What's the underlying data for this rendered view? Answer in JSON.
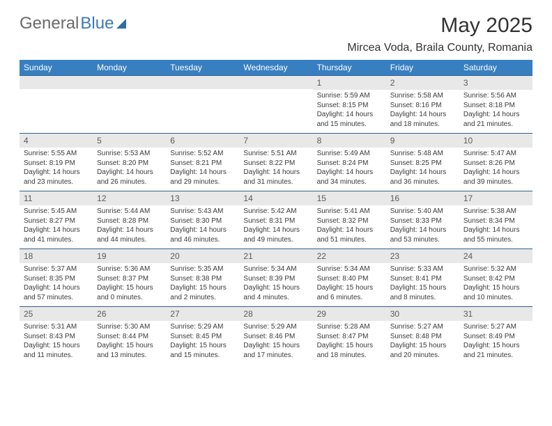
{
  "brand": {
    "part1": "General",
    "part2": "Blue"
  },
  "title": "May 2025",
  "location": "Mircea Voda, Braila County, Romania",
  "colors": {
    "header_bg": "#377fc0",
    "header_text": "#ffffff",
    "daynum_bg": "#e8e8e8",
    "border": "#2f5f8c",
    "body_text": "#333333"
  },
  "days_of_week": [
    "Sunday",
    "Monday",
    "Tuesday",
    "Wednesday",
    "Thursday",
    "Friday",
    "Saturday"
  ],
  "weeks": [
    [
      {
        "n": "",
        "lines": []
      },
      {
        "n": "",
        "lines": []
      },
      {
        "n": "",
        "lines": []
      },
      {
        "n": "",
        "lines": []
      },
      {
        "n": "1",
        "lines": [
          "Sunrise: 5:59 AM",
          "Sunset: 8:15 PM",
          "Daylight: 14 hours",
          "and 15 minutes."
        ]
      },
      {
        "n": "2",
        "lines": [
          "Sunrise: 5:58 AM",
          "Sunset: 8:16 PM",
          "Daylight: 14 hours",
          "and 18 minutes."
        ]
      },
      {
        "n": "3",
        "lines": [
          "Sunrise: 5:56 AM",
          "Sunset: 8:18 PM",
          "Daylight: 14 hours",
          "and 21 minutes."
        ]
      }
    ],
    [
      {
        "n": "4",
        "lines": [
          "Sunrise: 5:55 AM",
          "Sunset: 8:19 PM",
          "Daylight: 14 hours",
          "and 23 minutes."
        ]
      },
      {
        "n": "5",
        "lines": [
          "Sunrise: 5:53 AM",
          "Sunset: 8:20 PM",
          "Daylight: 14 hours",
          "and 26 minutes."
        ]
      },
      {
        "n": "6",
        "lines": [
          "Sunrise: 5:52 AM",
          "Sunset: 8:21 PM",
          "Daylight: 14 hours",
          "and 29 minutes."
        ]
      },
      {
        "n": "7",
        "lines": [
          "Sunrise: 5:51 AM",
          "Sunset: 8:22 PM",
          "Daylight: 14 hours",
          "and 31 minutes."
        ]
      },
      {
        "n": "8",
        "lines": [
          "Sunrise: 5:49 AM",
          "Sunset: 8:24 PM",
          "Daylight: 14 hours",
          "and 34 minutes."
        ]
      },
      {
        "n": "9",
        "lines": [
          "Sunrise: 5:48 AM",
          "Sunset: 8:25 PM",
          "Daylight: 14 hours",
          "and 36 minutes."
        ]
      },
      {
        "n": "10",
        "lines": [
          "Sunrise: 5:47 AM",
          "Sunset: 8:26 PM",
          "Daylight: 14 hours",
          "and 39 minutes."
        ]
      }
    ],
    [
      {
        "n": "11",
        "lines": [
          "Sunrise: 5:45 AM",
          "Sunset: 8:27 PM",
          "Daylight: 14 hours",
          "and 41 minutes."
        ]
      },
      {
        "n": "12",
        "lines": [
          "Sunrise: 5:44 AM",
          "Sunset: 8:28 PM",
          "Daylight: 14 hours",
          "and 44 minutes."
        ]
      },
      {
        "n": "13",
        "lines": [
          "Sunrise: 5:43 AM",
          "Sunset: 8:30 PM",
          "Daylight: 14 hours",
          "and 46 minutes."
        ]
      },
      {
        "n": "14",
        "lines": [
          "Sunrise: 5:42 AM",
          "Sunset: 8:31 PM",
          "Daylight: 14 hours",
          "and 49 minutes."
        ]
      },
      {
        "n": "15",
        "lines": [
          "Sunrise: 5:41 AM",
          "Sunset: 8:32 PM",
          "Daylight: 14 hours",
          "and 51 minutes."
        ]
      },
      {
        "n": "16",
        "lines": [
          "Sunrise: 5:40 AM",
          "Sunset: 8:33 PM",
          "Daylight: 14 hours",
          "and 53 minutes."
        ]
      },
      {
        "n": "17",
        "lines": [
          "Sunrise: 5:38 AM",
          "Sunset: 8:34 PM",
          "Daylight: 14 hours",
          "and 55 minutes."
        ]
      }
    ],
    [
      {
        "n": "18",
        "lines": [
          "Sunrise: 5:37 AM",
          "Sunset: 8:35 PM",
          "Daylight: 14 hours",
          "and 57 minutes."
        ]
      },
      {
        "n": "19",
        "lines": [
          "Sunrise: 5:36 AM",
          "Sunset: 8:37 PM",
          "Daylight: 15 hours",
          "and 0 minutes."
        ]
      },
      {
        "n": "20",
        "lines": [
          "Sunrise: 5:35 AM",
          "Sunset: 8:38 PM",
          "Daylight: 15 hours",
          "and 2 minutes."
        ]
      },
      {
        "n": "21",
        "lines": [
          "Sunrise: 5:34 AM",
          "Sunset: 8:39 PM",
          "Daylight: 15 hours",
          "and 4 minutes."
        ]
      },
      {
        "n": "22",
        "lines": [
          "Sunrise: 5:34 AM",
          "Sunset: 8:40 PM",
          "Daylight: 15 hours",
          "and 6 minutes."
        ]
      },
      {
        "n": "23",
        "lines": [
          "Sunrise: 5:33 AM",
          "Sunset: 8:41 PM",
          "Daylight: 15 hours",
          "and 8 minutes."
        ]
      },
      {
        "n": "24",
        "lines": [
          "Sunrise: 5:32 AM",
          "Sunset: 8:42 PM",
          "Daylight: 15 hours",
          "and 10 minutes."
        ]
      }
    ],
    [
      {
        "n": "25",
        "lines": [
          "Sunrise: 5:31 AM",
          "Sunset: 8:43 PM",
          "Daylight: 15 hours",
          "and 11 minutes."
        ]
      },
      {
        "n": "26",
        "lines": [
          "Sunrise: 5:30 AM",
          "Sunset: 8:44 PM",
          "Daylight: 15 hours",
          "and 13 minutes."
        ]
      },
      {
        "n": "27",
        "lines": [
          "Sunrise: 5:29 AM",
          "Sunset: 8:45 PM",
          "Daylight: 15 hours",
          "and 15 minutes."
        ]
      },
      {
        "n": "28",
        "lines": [
          "Sunrise: 5:29 AM",
          "Sunset: 8:46 PM",
          "Daylight: 15 hours",
          "and 17 minutes."
        ]
      },
      {
        "n": "29",
        "lines": [
          "Sunrise: 5:28 AM",
          "Sunset: 8:47 PM",
          "Daylight: 15 hours",
          "and 18 minutes."
        ]
      },
      {
        "n": "30",
        "lines": [
          "Sunrise: 5:27 AM",
          "Sunset: 8:48 PM",
          "Daylight: 15 hours",
          "and 20 minutes."
        ]
      },
      {
        "n": "31",
        "lines": [
          "Sunrise: 5:27 AM",
          "Sunset: 8:49 PM",
          "Daylight: 15 hours",
          "and 21 minutes."
        ]
      }
    ]
  ]
}
